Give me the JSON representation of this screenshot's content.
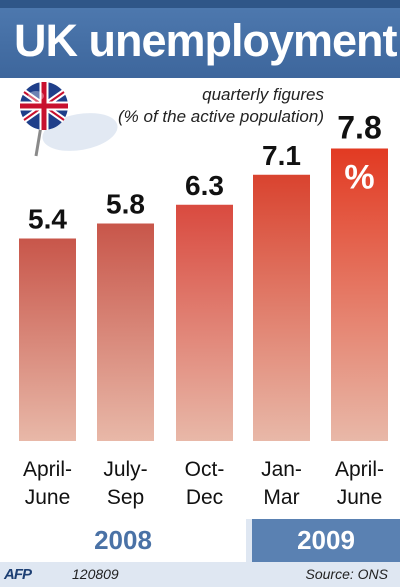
{
  "header": {
    "title": "UK unemployment",
    "subtitle_line1": "quarterly figures",
    "subtitle_line2": "(% of the active population)"
  },
  "chart_data": {
    "type": "bar",
    "title": "UK unemployment",
    "subtitle": "quarterly figures (% of the active population)",
    "categories": [
      "April-June",
      "July-Sep",
      "Oct-Dec",
      "Jan-Mar",
      "April-June"
    ],
    "category_lines": [
      [
        "April-",
        "June"
      ],
      [
        "July-",
        "Sep"
      ],
      [
        "Oct-",
        "Dec"
      ],
      [
        "Jan-",
        "Mar"
      ],
      [
        "April-",
        "June"
      ]
    ],
    "values": [
      5.4,
      5.8,
      6.3,
      7.1,
      7.8
    ],
    "value_labels": [
      "5.4",
      "5.8",
      "6.3",
      "7.1",
      "7.8"
    ],
    "unit_label": "%",
    "year_groups": [
      {
        "label": "2008",
        "categories": [
          0,
          1,
          2
        ]
      },
      {
        "label": "2009",
        "categories": [
          3,
          4
        ]
      }
    ],
    "bar_colors_top": [
      "#c8564a",
      "#c8564a",
      "#d94a3f",
      "#d9432f",
      "#e23a22"
    ],
    "bar_color_bottom": "#e8b8a8",
    "ylim": [
      0,
      8
    ],
    "grid": false,
    "legend": "none"
  },
  "footer": {
    "agency": "AFP",
    "code": "120809",
    "source": "Source: ONS"
  },
  "colors": {
    "title_bar": "#3d669c",
    "year_2008_text": "#4a72a6",
    "year_2009_bg": "#5a81b2"
  }
}
